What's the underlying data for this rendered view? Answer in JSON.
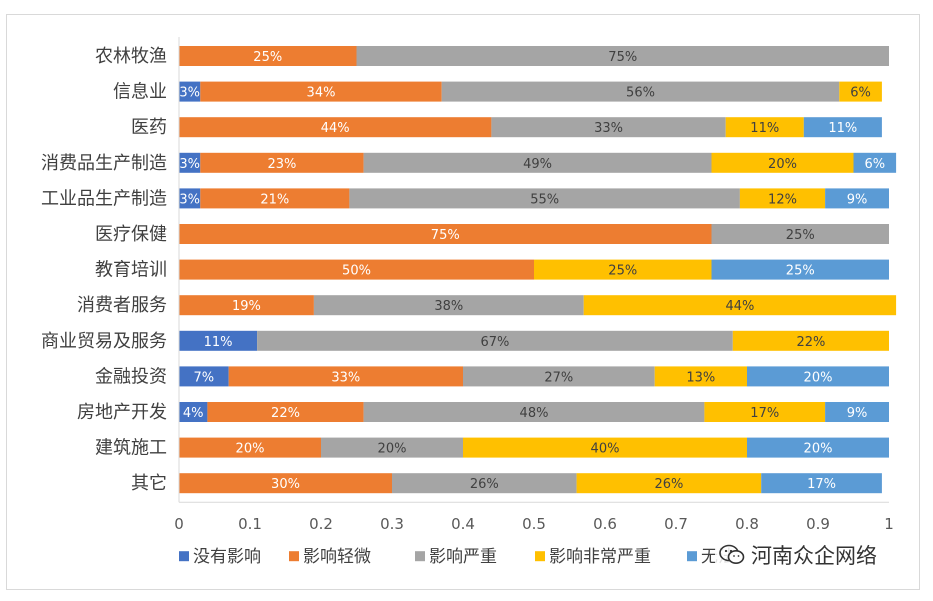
{
  "chart_data": {
    "type": "bar",
    "orientation": "horizontal",
    "stacked": true,
    "categories": [
      "农林牧渔",
      "信息业",
      "医药",
      "消费品生产制造",
      "工业品生产制造",
      "医疗保健",
      "教育培训",
      "消费者服务",
      "商业贸易及服务",
      "金融投资",
      "房地产开发",
      "建筑施工",
      "其它"
    ],
    "series": [
      {
        "name": "没有影响",
        "color": "#4472c4",
        "values": [
          0,
          0.03,
          0,
          0.03,
          0.03,
          0,
          0,
          0,
          0.11,
          0.07,
          0.04,
          0,
          0
        ]
      },
      {
        "name": "影响轻微",
        "color": "#ed7d31",
        "values": [
          0.25,
          0.34,
          0.44,
          0.23,
          0.21,
          0.75,
          0.5,
          0.19,
          0,
          0.33,
          0.22,
          0.2,
          0.3
        ]
      },
      {
        "name": "影响严重",
        "color": "#a5a5a5",
        "values": [
          0.75,
          0.56,
          0.33,
          0.49,
          0.55,
          0.25,
          0,
          0.38,
          0.67,
          0.27,
          0.48,
          0.2,
          0.26
        ]
      },
      {
        "name": "影响非常严重",
        "color": "#ffc000",
        "values": [
          0,
          0.06,
          0.11,
          0.2,
          0.12,
          0,
          0.25,
          0.44,
          0.22,
          0.13,
          0.17,
          0.4,
          0.26
        ]
      },
      {
        "name": "无法",
        "color": "#5b9bd5",
        "values": [
          0,
          0,
          0.11,
          0.06,
          0.09,
          0,
          0.25,
          0,
          0,
          0.2,
          0.09,
          0.2,
          0.17
        ]
      }
    ],
    "data_labels": [
      [
        "",
        "25%",
        "75%",
        "",
        ""
      ],
      [
        "3%",
        "34%",
        "56%",
        "6%",
        ""
      ],
      [
        "",
        "44%",
        "33%",
        "11%",
        "11%"
      ],
      [
        "3%",
        "23%",
        "49%",
        "20%",
        "6%"
      ],
      [
        "3%",
        "21%",
        "55%",
        "12%",
        "9%"
      ],
      [
        "",
        "75%",
        "25%",
        "",
        ""
      ],
      [
        "",
        "50%",
        "",
        "25%",
        "25%"
      ],
      [
        "",
        "19%",
        "38%",
        "44%",
        ""
      ],
      [
        "11%",
        "",
        "67%",
        "22%",
        ""
      ],
      [
        "7%",
        "33%",
        "27%",
        "13%",
        "20%"
      ],
      [
        "4%",
        "22%",
        "48%",
        "17%",
        "9%"
      ],
      [
        "",
        "20%",
        "20%",
        "40%",
        "20%"
      ],
      [
        "",
        "30%",
        "26%",
        "26%",
        "17%"
      ]
    ],
    "xlim": [
      0,
      1
    ],
    "xticks": [
      "0",
      "0.1",
      "0.2",
      "0.3",
      "0.4",
      "0.5",
      "0.6",
      "0.7",
      "0.8",
      "0.9",
      "1"
    ],
    "legend_position": "bottom"
  },
  "watermark": {
    "text": "河南众企网络",
    "icon": "wechat-icon"
  }
}
